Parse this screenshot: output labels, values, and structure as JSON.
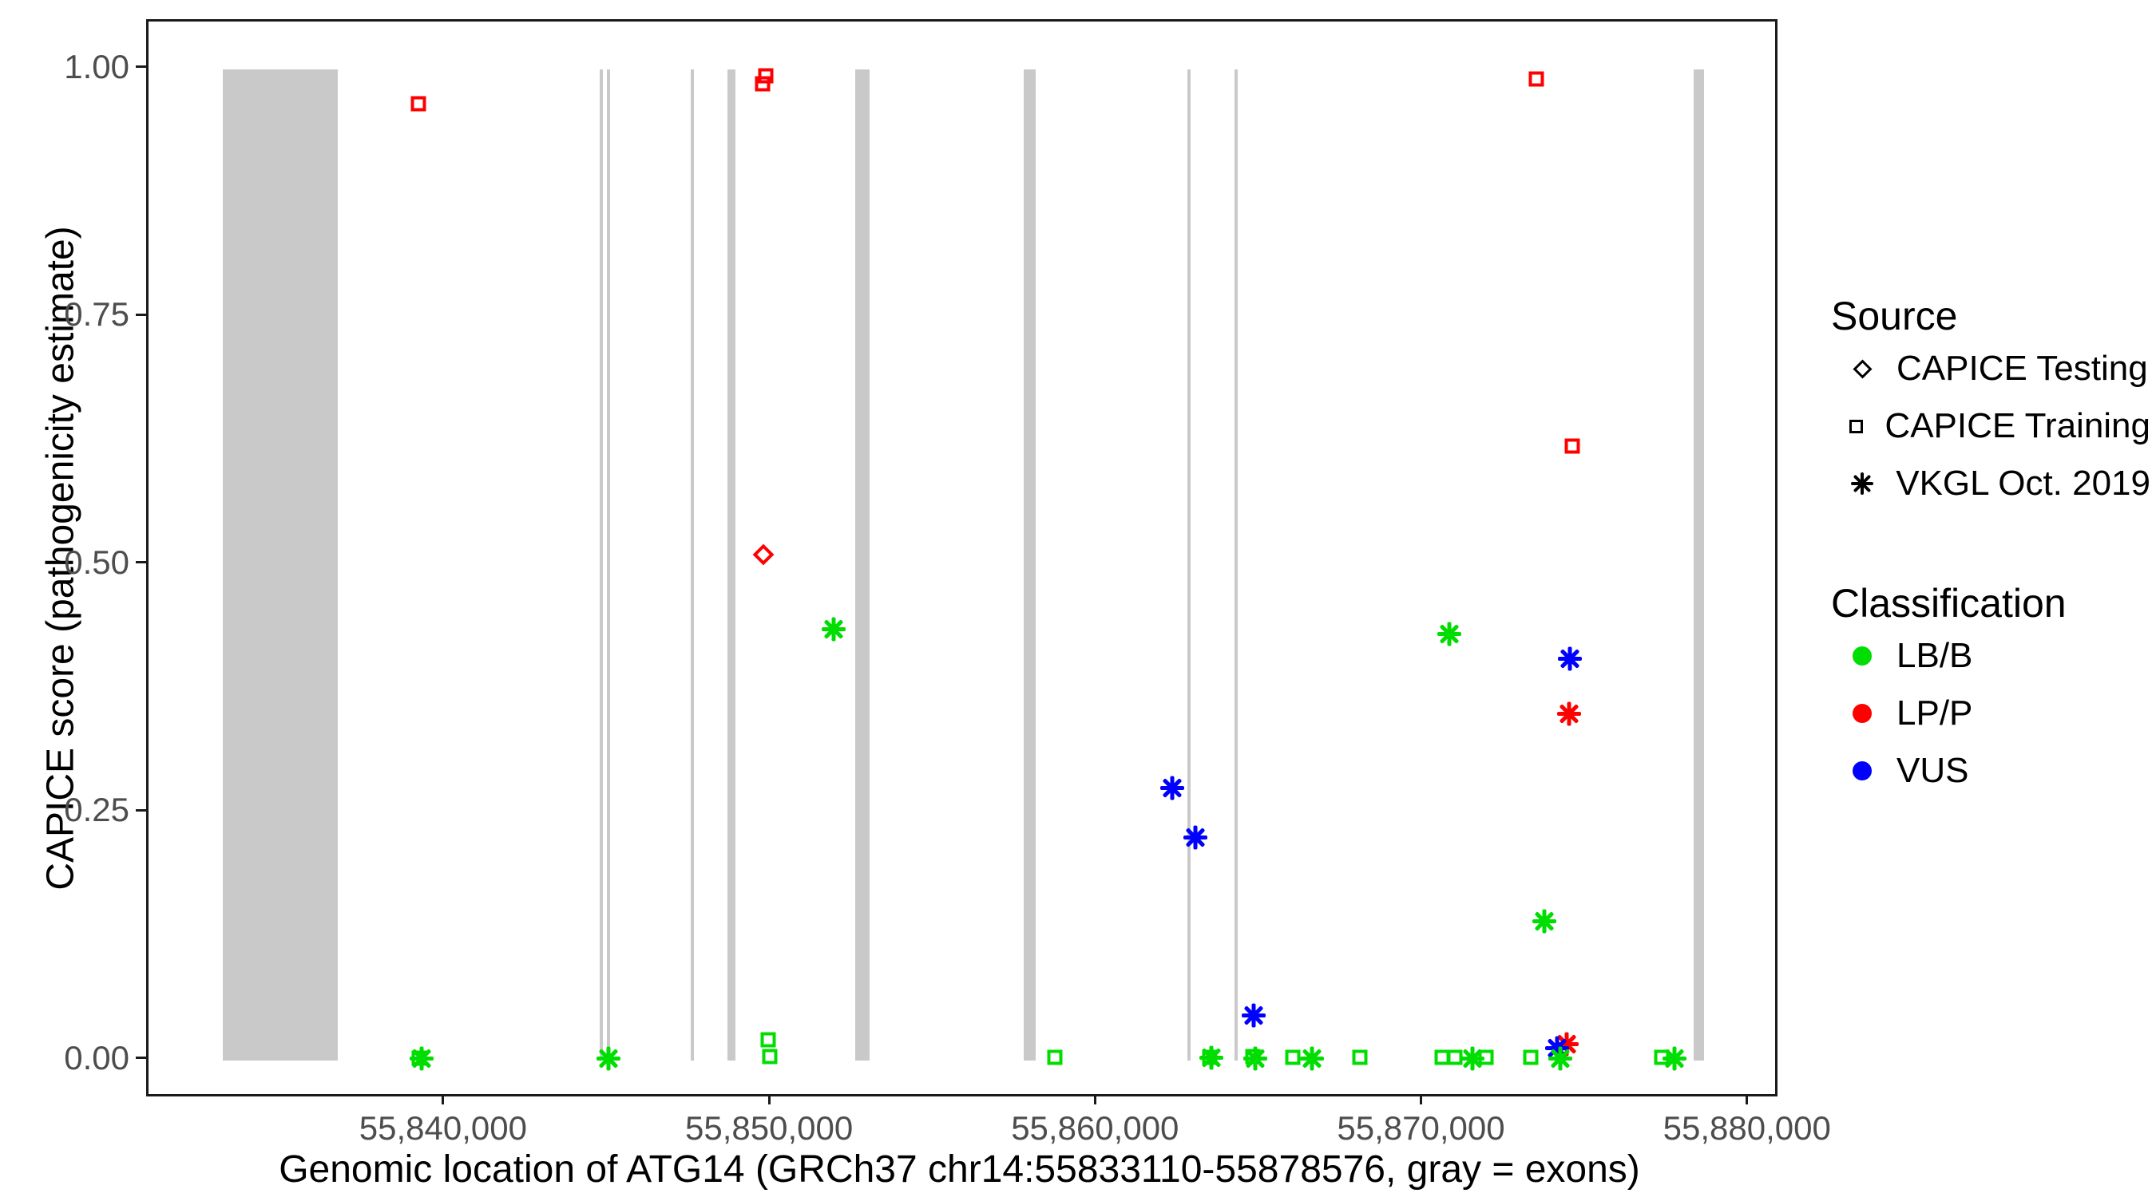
{
  "chart_data": {
    "type": "scatter",
    "title": "",
    "xlabel": "Genomic location of ATG14 (GRCh37 chr14:55833110-55878576, gray = exons)",
    "ylabel": "CAPICE score (pathogenicity estimate)",
    "xlim": [
      55830890,
      55880790
    ],
    "ylim": [
      -0.034,
      1.048
    ],
    "grid": "off",
    "gene": {
      "name": "ATG14",
      "assembly": "GRCh37",
      "chromosome": "chr14",
      "start": 55833110,
      "end": 55878576
    },
    "exon_color": "#c9c9c9",
    "x_ticks": [
      {
        "value": 55840000,
        "label": "55,840,000"
      },
      {
        "value": 55850000,
        "label": "55,850,000"
      },
      {
        "value": 55860000,
        "label": "55,860,000"
      },
      {
        "value": 55870000,
        "label": "55,870,000"
      },
      {
        "value": 55880000,
        "label": "55,880,000"
      }
    ],
    "y_ticks": [
      {
        "value": 0.0,
        "label": "0.00"
      },
      {
        "value": 0.25,
        "label": "0.25"
      },
      {
        "value": 0.5,
        "label": "0.50"
      },
      {
        "value": 0.75,
        "label": "0.75"
      },
      {
        "value": 1.0,
        "label": "1.00"
      }
    ],
    "exons": [
      [
        55833170,
        55836690
      ],
      [
        55844740,
        55844840
      ],
      [
        55844960,
        55845060
      ],
      [
        55847520,
        55847630
      ],
      [
        55848650,
        55848890
      ],
      [
        55852560,
        55853000
      ],
      [
        55857730,
        55858100
      ],
      [
        55862760,
        55862840
      ],
      [
        55864210,
        55864290
      ],
      [
        55878280,
        55878600
      ]
    ],
    "legend": {
      "source": {
        "title": "Source",
        "items": [
          {
            "label": "CAPICE Testing",
            "shape": "diamond"
          },
          {
            "label": "CAPICE Training",
            "shape": "square"
          },
          {
            "label": "VKGL Oct. 2019",
            "shape": "asterisk"
          }
        ]
      },
      "classification": {
        "title": "Classification",
        "items": [
          {
            "label": "LB/B",
            "color": "#00dd00"
          },
          {
            "label": "LP/P",
            "color": "#ff0000"
          },
          {
            "label": "VUS",
            "color": "#0000ff"
          }
        ]
      }
    },
    "points": [
      {
        "x": 55839170,
        "y": 0.965,
        "source": "CAPICE Training",
        "classification": "LP/P"
      },
      {
        "x": 55849720,
        "y": 0.985,
        "source": "CAPICE Training",
        "classification": "LP/P"
      },
      {
        "x": 55849820,
        "y": 0.993,
        "source": "CAPICE Training",
        "classification": "LP/P"
      },
      {
        "x": 55873460,
        "y": 0.99,
        "source": "CAPICE Training",
        "classification": "LP/P"
      },
      {
        "x": 55874560,
        "y": 0.62,
        "source": "CAPICE Training",
        "classification": "LP/P"
      },
      {
        "x": 55849750,
        "y": 0.51,
        "source": "CAPICE Testing",
        "classification": "LP/P"
      },
      {
        "x": 55874400,
        "y": 0.016,
        "source": "VKGL Oct. 2019",
        "classification": "LP/P"
      },
      {
        "x": 55874465,
        "y": 0.35,
        "source": "VKGL Oct. 2019",
        "classification": "LP/P"
      },
      {
        "x": 55862300,
        "y": 0.275,
        "source": "VKGL Oct. 2019",
        "classification": "VUS"
      },
      {
        "x": 55863000,
        "y": 0.225,
        "source": "VKGL Oct. 2019",
        "classification": "VUS"
      },
      {
        "x": 55864800,
        "y": 0.045,
        "source": "VKGL Oct. 2019",
        "classification": "VUS"
      },
      {
        "x": 55874100,
        "y": 0.012,
        "source": "VKGL Oct. 2019",
        "classification": "VUS"
      },
      {
        "x": 55874490,
        "y": 0.405,
        "source": "VKGL Oct. 2019",
        "classification": "VUS"
      },
      {
        "x": 55839190,
        "y": 0.002,
        "source": "CAPICE Training",
        "classification": "LB/B"
      },
      {
        "x": 55839260,
        "y": 0.002,
        "source": "VKGL Oct. 2019",
        "classification": "LB/B"
      },
      {
        "x": 55845000,
        "y": 0.002,
        "source": "VKGL Oct. 2019",
        "classification": "LB/B"
      },
      {
        "x": 55849900,
        "y": 0.021,
        "source": "CAPICE Training",
        "classification": "LB/B"
      },
      {
        "x": 55849940,
        "y": 0.004,
        "source": "CAPICE Training",
        "classification": "LB/B"
      },
      {
        "x": 55851900,
        "y": 0.435,
        "source": "VKGL Oct. 2019",
        "classification": "LB/B"
      },
      {
        "x": 55858690,
        "y": 0.003,
        "source": "CAPICE Training",
        "classification": "LB/B"
      },
      {
        "x": 55863450,
        "y": 0.003,
        "source": "CAPICE Training",
        "classification": "LB/B"
      },
      {
        "x": 55863500,
        "y": 0.003,
        "source": "VKGL Oct. 2019",
        "classification": "LB/B"
      },
      {
        "x": 55864780,
        "y": 0.004,
        "source": "CAPICE Training",
        "classification": "LB/B"
      },
      {
        "x": 55864840,
        "y": 0.002,
        "source": "VKGL Oct. 2019",
        "classification": "LB/B"
      },
      {
        "x": 55866000,
        "y": 0.003,
        "source": "CAPICE Training",
        "classification": "LB/B"
      },
      {
        "x": 55866580,
        "y": 0.002,
        "source": "VKGL Oct. 2019",
        "classification": "LB/B"
      },
      {
        "x": 55868050,
        "y": 0.003,
        "source": "CAPICE Training",
        "classification": "LB/B"
      },
      {
        "x": 55870570,
        "y": 0.003,
        "source": "CAPICE Training",
        "classification": "LB/B"
      },
      {
        "x": 55870800,
        "y": 0.43,
        "source": "VKGL Oct. 2019",
        "classification": "LB/B"
      },
      {
        "x": 55870960,
        "y": 0.003,
        "source": "CAPICE Training",
        "classification": "LB/B"
      },
      {
        "x": 55871500,
        "y": 0.002,
        "source": "VKGL Oct. 2019",
        "classification": "LB/B"
      },
      {
        "x": 55871920,
        "y": 0.003,
        "source": "CAPICE Training",
        "classification": "LB/B"
      },
      {
        "x": 55873300,
        "y": 0.003,
        "source": "CAPICE Training",
        "classification": "LB/B"
      },
      {
        "x": 55873700,
        "y": 0.14,
        "source": "VKGL Oct. 2019",
        "classification": "LB/B"
      },
      {
        "x": 55874200,
        "y": 0.002,
        "source": "VKGL Oct. 2019",
        "classification": "LB/B"
      },
      {
        "x": 55877300,
        "y": 0.003,
        "source": "CAPICE Training",
        "classification": "LB/B"
      },
      {
        "x": 55877700,
        "y": 0.002,
        "source": "VKGL Oct. 2019",
        "classification": "LB/B"
      }
    ]
  }
}
